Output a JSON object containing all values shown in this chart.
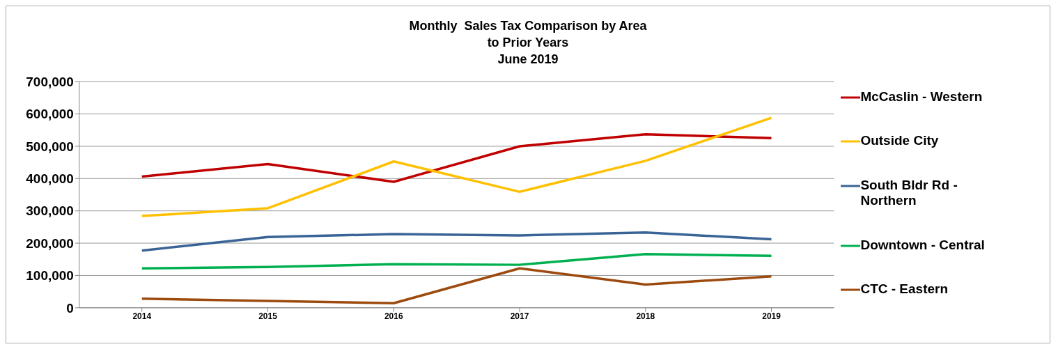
{
  "chart_data": {
    "type": "line",
    "title": "Monthly  Sales Tax Comparison by Area\nto Prior Years\nJune 2019",
    "categories": [
      "2014",
      "2015",
      "2016",
      "2017",
      "2018",
      "2019"
    ],
    "series": [
      {
        "name": "McCaslin - Western",
        "color": "#c00000",
        "values": [
          406000,
          445000,
          390000,
          500000,
          537000,
          525000
        ]
      },
      {
        "name": "Outside City",
        "color": "#ffc000",
        "values": [
          284000,
          308000,
          453000,
          359000,
          455000,
          588000
        ]
      },
      {
        "name": "South Bldr Rd - Northern",
        "color": "#3a6496",
        "values": [
          177000,
          219000,
          228000,
          224000,
          233000,
          212000
        ]
      },
      {
        "name": "Downtown - Central",
        "color": "#00b050",
        "values": [
          122000,
          126000,
          135000,
          133000,
          166000,
          161000
        ]
      },
      {
        "name": "CTC - Eastern",
        "color": "#9c4a0e",
        "values": [
          28000,
          21000,
          14000,
          122000,
          72000,
          97000
        ]
      }
    ],
    "ylim": [
      0,
      700000
    ],
    "yticks": [
      0,
      {
        "value": 100000,
        "label": "100,000"
      },
      {
        "value": 200000,
        "label": "200,000"
      },
      {
        "value": 300000,
        "label": "300,000"
      },
      {
        "value": 400000,
        "label": "400,000"
      },
      {
        "value": 500000,
        "label": "500,000"
      },
      {
        "value": 600000,
        "label": "600,000"
      },
      {
        "value": 700000,
        "label": "700,000"
      }
    ],
    "grid": "y",
    "legend": "right",
    "marker": "none",
    "line_style": "solid"
  }
}
